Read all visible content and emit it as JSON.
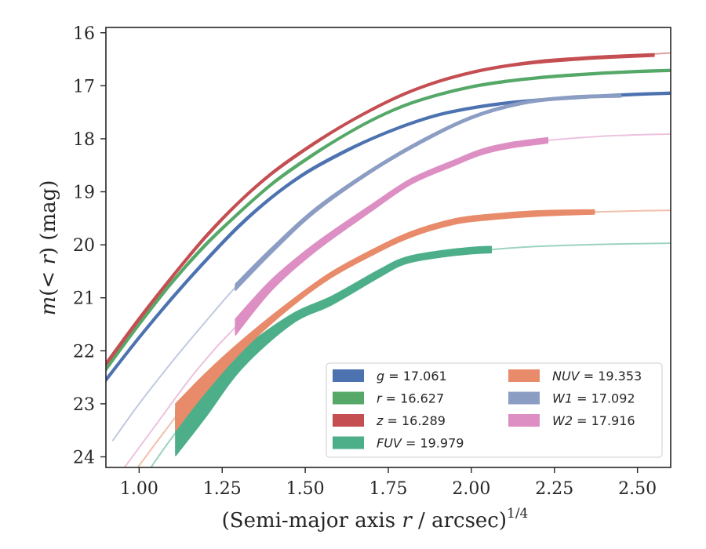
{
  "chart_data": {
    "type": "line",
    "xlabel": "(Semi-major axis r / arcsec)^1/4",
    "ylabel": "m(< r) (mag)",
    "xlim": [
      0.9,
      2.6
    ],
    "ylim": [
      24.2,
      15.9
    ],
    "y_inverted": true,
    "grid": false,
    "legend_placement": "lower-right",
    "xticks": [
      "1.00",
      "1.25",
      "1.50",
      "1.75",
      "2.00",
      "2.25",
      "2.50"
    ],
    "xtick_values": [
      1.0,
      1.25,
      1.5,
      1.75,
      2.0,
      2.25,
      2.5
    ],
    "yticks": [
      "16",
      "17",
      "18",
      "19",
      "20",
      "21",
      "22",
      "23",
      "24"
    ],
    "ytick_values": [
      16,
      17,
      18,
      19,
      20,
      21,
      22,
      23,
      24
    ],
    "series": [
      {
        "name": "g = 17.061",
        "legend_label": "g",
        "legend_value": "17.061",
        "color": "#4c72b0",
        "band": [
          {
            "x": 0.9,
            "y": 22.55,
            "w": 0.06
          },
          {
            "x": 1.0,
            "y": 21.75,
            "w": 0.06
          },
          {
            "x": 1.1,
            "y": 21.0,
            "w": 0.06
          },
          {
            "x": 1.2,
            "y": 20.3,
            "w": 0.06
          },
          {
            "x": 1.3,
            "y": 19.65,
            "w": 0.06
          },
          {
            "x": 1.4,
            "y": 19.1,
            "w": 0.05
          },
          {
            "x": 1.5,
            "y": 18.65,
            "w": 0.05
          },
          {
            "x": 1.6,
            "y": 18.3,
            "w": 0.05
          },
          {
            "x": 1.7,
            "y": 18.0,
            "w": 0.04
          },
          {
            "x": 1.8,
            "y": 17.75,
            "w": 0.04
          },
          {
            "x": 1.9,
            "y": 17.55,
            "w": 0.04
          },
          {
            "x": 2.0,
            "y": 17.42,
            "w": 0.04
          },
          {
            "x": 2.1,
            "y": 17.33,
            "w": 0.04
          },
          {
            "x": 2.2,
            "y": 17.27,
            "w": 0.04
          },
          {
            "x": 2.3,
            "y": 17.23,
            "w": 0.04
          },
          {
            "x": 2.4,
            "y": 17.19,
            "w": 0.04
          },
          {
            "x": 2.5,
            "y": 17.16,
            "w": 0.04
          },
          {
            "x": 2.6,
            "y": 17.14,
            "w": 0.04
          }
        ],
        "tail": []
      },
      {
        "name": "r = 16.627",
        "legend_label": "r",
        "legend_value": "16.627",
        "color": "#55a868",
        "band": [
          {
            "x": 0.9,
            "y": 22.35,
            "w": 0.06
          },
          {
            "x": 1.0,
            "y": 21.5,
            "w": 0.06
          },
          {
            "x": 1.1,
            "y": 20.7,
            "w": 0.06
          },
          {
            "x": 1.2,
            "y": 20.0,
            "w": 0.06
          },
          {
            "x": 1.3,
            "y": 19.4,
            "w": 0.05
          },
          {
            "x": 1.4,
            "y": 18.85,
            "w": 0.05
          },
          {
            "x": 1.5,
            "y": 18.4,
            "w": 0.05
          },
          {
            "x": 1.6,
            "y": 18.0,
            "w": 0.04
          },
          {
            "x": 1.7,
            "y": 17.65,
            "w": 0.04
          },
          {
            "x": 1.8,
            "y": 17.37,
            "w": 0.04
          },
          {
            "x": 1.9,
            "y": 17.17,
            "w": 0.04
          },
          {
            "x": 2.0,
            "y": 17.02,
            "w": 0.04
          },
          {
            "x": 2.1,
            "y": 16.92,
            "w": 0.04
          },
          {
            "x": 2.2,
            "y": 16.85,
            "w": 0.04
          },
          {
            "x": 2.3,
            "y": 16.8,
            "w": 0.04
          },
          {
            "x": 2.4,
            "y": 16.76,
            "w": 0.04
          },
          {
            "x": 2.5,
            "y": 16.73,
            "w": 0.04
          },
          {
            "x": 2.6,
            "y": 16.71,
            "w": 0.04
          }
        ],
        "tail": []
      },
      {
        "name": "z = 16.289",
        "legend_label": "z",
        "legend_value": "16.289",
        "color": "#c44e52",
        "band": [
          {
            "x": 0.9,
            "y": 22.25,
            "w": 0.07
          },
          {
            "x": 1.0,
            "y": 21.4,
            "w": 0.07
          },
          {
            "x": 1.1,
            "y": 20.6,
            "w": 0.06
          },
          {
            "x": 1.2,
            "y": 19.85,
            "w": 0.06
          },
          {
            "x": 1.3,
            "y": 19.2,
            "w": 0.05
          },
          {
            "x": 1.4,
            "y": 18.65,
            "w": 0.05
          },
          {
            "x": 1.5,
            "y": 18.2,
            "w": 0.05
          },
          {
            "x": 1.6,
            "y": 17.8,
            "w": 0.04
          },
          {
            "x": 1.7,
            "y": 17.45,
            "w": 0.04
          },
          {
            "x": 1.8,
            "y": 17.15,
            "w": 0.04
          },
          {
            "x": 1.9,
            "y": 16.92,
            "w": 0.04
          },
          {
            "x": 2.0,
            "y": 16.75,
            "w": 0.04
          },
          {
            "x": 2.1,
            "y": 16.63,
            "w": 0.04
          },
          {
            "x": 2.2,
            "y": 16.55,
            "w": 0.05
          },
          {
            "x": 2.3,
            "y": 16.5,
            "w": 0.05
          },
          {
            "x": 2.4,
            "y": 16.46,
            "w": 0.05
          },
          {
            "x": 2.55,
            "y": 16.42,
            "w": 0.05
          }
        ],
        "tail": [
          {
            "x": 2.4,
            "y": 16.46
          },
          {
            "x": 2.6,
            "y": 16.38
          }
        ]
      },
      {
        "name": "FUV = 19.979",
        "legend_label": "FUV",
        "legend_value": "19.979",
        "color": "#4daf8a",
        "band": [
          {
            "x": 1.11,
            "y": 23.55,
            "w": 0.85
          },
          {
            "x": 1.2,
            "y": 22.95,
            "w": 0.6
          },
          {
            "x": 1.31,
            "y": 22.15,
            "w": 0.35
          },
          {
            "x": 1.46,
            "y": 21.4,
            "w": 0.18
          },
          {
            "x": 1.58,
            "y": 21.05,
            "w": 0.16
          },
          {
            "x": 1.72,
            "y": 20.55,
            "w": 0.14
          },
          {
            "x": 1.8,
            "y": 20.3,
            "w": 0.12
          },
          {
            "x": 1.9,
            "y": 20.18,
            "w": 0.12
          },
          {
            "x": 2.0,
            "y": 20.11,
            "w": 0.12
          },
          {
            "x": 2.06,
            "y": 20.09,
            "w": 0.12
          }
        ],
        "tail": [
          {
            "x": 1.03,
            "y": 24.25
          },
          {
            "x": 1.11,
            "y": 23.55
          },
          {
            "x": 1.2,
            "y": 22.95
          },
          {
            "x": 1.31,
            "y": 22.15
          },
          {
            "x": 1.46,
            "y": 21.4
          },
          {
            "x": 1.58,
            "y": 21.05
          },
          {
            "x": 1.72,
            "y": 20.55
          },
          {
            "x": 1.8,
            "y": 20.3
          },
          {
            "x": 1.9,
            "y": 20.18
          },
          {
            "x": 2.06,
            "y": 20.09
          },
          {
            "x": 2.2,
            "y": 20.03
          },
          {
            "x": 2.4,
            "y": 19.99
          },
          {
            "x": 2.6,
            "y": 19.97
          }
        ]
      },
      {
        "name": "NUV = 19.353",
        "legend_label": "NUV",
        "legend_value": "19.353",
        "color": "#e88b6a",
        "band": [
          {
            "x": 1.11,
            "y": 23.25,
            "w": 0.5
          },
          {
            "x": 1.2,
            "y": 22.6,
            "w": 0.35
          },
          {
            "x": 1.31,
            "y": 21.9,
            "w": 0.2
          },
          {
            "x": 1.44,
            "y": 21.2,
            "w": 0.12
          },
          {
            "x": 1.57,
            "y": 20.6,
            "w": 0.1
          },
          {
            "x": 1.7,
            "y": 20.15,
            "w": 0.1
          },
          {
            "x": 1.82,
            "y": 19.8,
            "w": 0.1
          },
          {
            "x": 1.95,
            "y": 19.56,
            "w": 0.1
          },
          {
            "x": 2.05,
            "y": 19.48,
            "w": 0.1
          },
          {
            "x": 2.2,
            "y": 19.41,
            "w": 0.1
          },
          {
            "x": 2.37,
            "y": 19.38,
            "w": 0.08
          }
        ],
        "tail": [
          {
            "x": 0.99,
            "y": 24.25
          },
          {
            "x": 1.11,
            "y": 23.25
          },
          {
            "x": 1.2,
            "y": 22.6
          },
          {
            "x": 1.31,
            "y": 21.9
          },
          {
            "x": 1.44,
            "y": 21.2
          },
          {
            "x": 1.57,
            "y": 20.6
          },
          {
            "x": 1.7,
            "y": 20.15
          },
          {
            "x": 1.82,
            "y": 19.8
          },
          {
            "x": 1.95,
            "y": 19.56
          },
          {
            "x": 2.05,
            "y": 19.48
          },
          {
            "x": 2.2,
            "y": 19.41
          },
          {
            "x": 2.37,
            "y": 19.38
          },
          {
            "x": 2.5,
            "y": 19.36
          },
          {
            "x": 2.6,
            "y": 19.35
          }
        ]
      },
      {
        "name": "W1 = 17.092",
        "legend_label": "W1",
        "legend_value": "17.092",
        "color": "#8c9dc4",
        "band": [
          {
            "x": 1.29,
            "y": 20.8,
            "w": 0.12
          },
          {
            "x": 1.4,
            "y": 20.1,
            "w": 0.1
          },
          {
            "x": 1.53,
            "y": 19.35,
            "w": 0.08
          },
          {
            "x": 1.7,
            "y": 18.6,
            "w": 0.06
          },
          {
            "x": 1.85,
            "y": 18.05,
            "w": 0.06
          },
          {
            "x": 2.0,
            "y": 17.6,
            "w": 0.05
          },
          {
            "x": 2.15,
            "y": 17.33,
            "w": 0.05
          },
          {
            "x": 2.3,
            "y": 17.22,
            "w": 0.05
          },
          {
            "x": 2.45,
            "y": 17.19,
            "w": 0.05
          }
        ],
        "tail": [
          {
            "x": 0.92,
            "y": 23.7
          },
          {
            "x": 1.0,
            "y": 23.0
          },
          {
            "x": 1.1,
            "y": 22.2
          },
          {
            "x": 1.2,
            "y": 21.45
          },
          {
            "x": 1.29,
            "y": 20.8
          },
          {
            "x": 1.4,
            "y": 20.1
          },
          {
            "x": 1.53,
            "y": 19.35
          },
          {
            "x": 1.7,
            "y": 18.6
          },
          {
            "x": 1.85,
            "y": 18.05
          },
          {
            "x": 2.0,
            "y": 17.6
          },
          {
            "x": 2.15,
            "y": 17.33
          },
          {
            "x": 2.3,
            "y": 17.22
          },
          {
            "x": 2.45,
            "y": 17.19
          },
          {
            "x": 2.6,
            "y": 17.13
          }
        ]
      },
      {
        "name": "W2 = 17.916",
        "legend_label": "W2",
        "legend_value": "17.916",
        "color": "#dd8fc4",
        "band": [
          {
            "x": 1.29,
            "y": 21.55,
            "w": 0.3
          },
          {
            "x": 1.4,
            "y": 20.75,
            "w": 0.2
          },
          {
            "x": 1.53,
            "y": 20.05,
            "w": 0.15
          },
          {
            "x": 1.7,
            "y": 19.3,
            "w": 0.12
          },
          {
            "x": 1.82,
            "y": 18.8,
            "w": 0.1
          },
          {
            "x": 1.95,
            "y": 18.45,
            "w": 0.1
          },
          {
            "x": 2.03,
            "y": 18.25,
            "w": 0.1
          },
          {
            "x": 2.12,
            "y": 18.12,
            "w": 0.1
          },
          {
            "x": 2.23,
            "y": 18.03,
            "w": 0.1
          }
        ],
        "tail": [
          {
            "x": 0.95,
            "y": 24.25
          },
          {
            "x": 1.05,
            "y": 23.4
          },
          {
            "x": 1.15,
            "y": 22.55
          },
          {
            "x": 1.23,
            "y": 21.95
          },
          {
            "x": 1.29,
            "y": 21.55
          },
          {
            "x": 1.4,
            "y": 20.75
          },
          {
            "x": 1.53,
            "y": 20.05
          },
          {
            "x": 1.7,
            "y": 19.3
          },
          {
            "x": 1.82,
            "y": 18.8
          },
          {
            "x": 1.95,
            "y": 18.45
          },
          {
            "x": 2.03,
            "y": 18.25
          },
          {
            "x": 2.12,
            "y": 18.12
          },
          {
            "x": 2.23,
            "y": 18.03
          },
          {
            "x": 2.4,
            "y": 17.95
          },
          {
            "x": 2.6,
            "y": 17.91
          }
        ]
      }
    ]
  }
}
